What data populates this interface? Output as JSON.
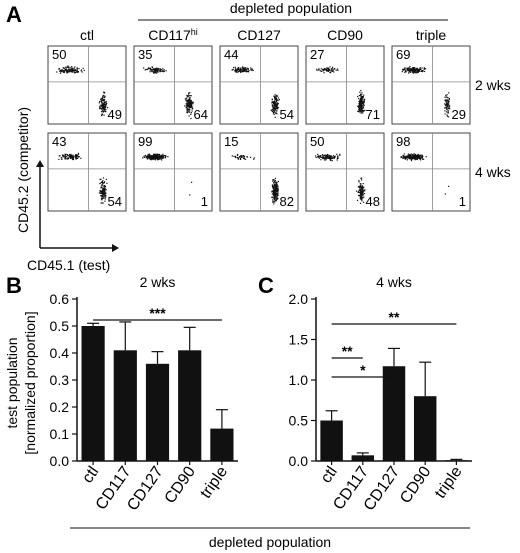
{
  "panel_a": {
    "letter": "A",
    "header": "depleted population",
    "columns": [
      {
        "label": "ctl",
        "sup": ""
      },
      {
        "label": "CD117",
        "sup": "hi"
      },
      {
        "label": "CD127",
        "sup": ""
      },
      {
        "label": "CD90",
        "sup": ""
      },
      {
        "label": "triple",
        "sup": ""
      }
    ],
    "rows": [
      {
        "label": "2 wks",
        "upper_left": [
          "50",
          "35",
          "44",
          "27",
          "69"
        ],
        "lower_right": [
          "49",
          "64",
          "54",
          "71",
          "29"
        ]
      },
      {
        "label": "4 wks",
        "upper_left": [
          "43",
          "99",
          "15",
          "50",
          "98"
        ],
        "lower_right": [
          "54",
          "1",
          "82",
          "48",
          "1"
        ]
      }
    ],
    "y_axis_label": "CD45.2 (competitor)",
    "x_axis_label": "CD45.1 (test)"
  },
  "panel_b": {
    "letter": "B"
  },
  "panel_c": {
    "letter": "C"
  },
  "shared_ylabel_line1": "test population",
  "shared_ylabel_line2": "[normalized proportion]",
  "shared_xlabel": "depleted population",
  "chart_data": [
    {
      "type": "bar",
      "panel": "B",
      "title": "2 wks",
      "categories": [
        "ctl",
        "CD117",
        "CD127",
        "CD90",
        "triple"
      ],
      "values": [
        0.5,
        0.41,
        0.36,
        0.41,
        0.12
      ],
      "errors": [
        0.01,
        0.105,
        0.045,
        0.085,
        0.07
      ],
      "ylim": [
        0,
        0.6
      ],
      "yticks": [
        "0.0",
        "0.1",
        "0.2",
        "0.3",
        "0.4",
        "0.5",
        "0.6"
      ],
      "significance": [
        {
          "from": "ctl",
          "to": "triple",
          "label": "***"
        }
      ],
      "bar_color": "#111111"
    },
    {
      "type": "bar",
      "panel": "C",
      "title": "4 wks",
      "categories": [
        "ctl",
        "CD117",
        "CD127",
        "CD90",
        "triple"
      ],
      "values": [
        0.5,
        0.07,
        1.17,
        0.8,
        0.01
      ],
      "errors": [
        0.12,
        0.03,
        0.22,
        0.42,
        0.01
      ],
      "ylim": [
        0,
        2.0
      ],
      "yticks": [
        "0.0",
        "0.5",
        "1.0",
        "1.5",
        "2.0"
      ],
      "significance": [
        {
          "from": "ctl",
          "to": "CD117",
          "label": "**"
        },
        {
          "from": "ctl",
          "to": "CD127",
          "label": "*"
        },
        {
          "from": "ctl",
          "to": "triple",
          "label": "**"
        }
      ],
      "bar_color": "#111111"
    }
  ]
}
